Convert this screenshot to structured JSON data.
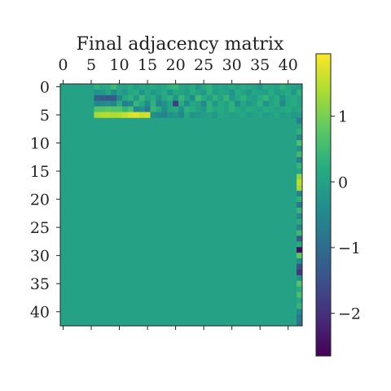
{
  "chart_data": {
    "type": "heatmap",
    "title": "Final adjacency matrix",
    "size": 43,
    "colormap": "viridis",
    "vmin": -2.65,
    "vmax": 1.95,
    "x_ticks": [
      0,
      5,
      10,
      15,
      20,
      25,
      30,
      35,
      40
    ],
    "y_ticks": [
      0,
      5,
      10,
      15,
      20,
      25,
      30,
      35,
      40
    ],
    "colorbar_ticks": [
      1,
      0,
      -1,
      -2
    ],
    "colorbar_tick_labels": [
      "1",
      "0",
      "−1",
      "−2"
    ],
    "dense_rows": {
      "start_row": 0,
      "start_col": 6,
      "rows": [
        [
          0.3,
          0.1,
          0.2,
          0.5,
          0.1,
          0.0,
          0.2,
          -0.1,
          0.1,
          0.0,
          0.2,
          0.0,
          0.1,
          0.3,
          0.4,
          0.1,
          0.0,
          0.2,
          -0.2,
          0.1,
          0.3,
          0.0,
          0.1,
          -0.1,
          0.2,
          0.0,
          0.2,
          0.1,
          0.0,
          -0.2,
          0.2,
          0.1,
          0.0,
          0.3,
          0.1,
          0.0,
          -0.1
        ],
        [
          -0.3,
          -0.2,
          0.1,
          -0.4,
          0.0,
          -0.2,
          0.1,
          0.2,
          -0.3,
          0.1,
          -0.2,
          0.0,
          0.2,
          -0.3,
          0.1,
          0.0,
          -0.1,
          0.2,
          0.0,
          -0.2,
          0.3,
          -0.1,
          0.1,
          0.0,
          -0.3,
          0.2,
          0.0,
          -0.2,
          0.1,
          0.0,
          -0.1,
          0.2,
          -0.1,
          0.0,
          0.2,
          -0.2,
          0.3
        ],
        [
          -1.2,
          -1.3,
          -1.4,
          -1.3,
          -0.5,
          0.1,
          0.3,
          -0.2,
          0.4,
          0.0,
          0.2,
          -0.3,
          0.1,
          0.3,
          -0.2,
          0.4,
          0.0,
          -0.4,
          0.5,
          0.2,
          -0.1,
          0.3,
          0.0,
          0.4,
          -0.2,
          0.1,
          0.3,
          0.0,
          -0.1,
          0.2,
          0.4,
          0.0,
          0.2,
          -0.3,
          0.1,
          0.2,
          0.0
        ],
        [
          -0.6,
          -0.5,
          -0.4,
          -0.6,
          0.2,
          -0.7,
          -0.5,
          0.4,
          0.1,
          -0.4,
          0.3,
          -0.6,
          -0.3,
          0.0,
          -1.8,
          0.2,
          -0.4,
          0.1,
          0.0,
          -0.5,
          0.3,
          -0.2,
          0.2,
          0.0,
          0.3,
          -0.4,
          0.1,
          -0.2,
          0.0,
          0.3,
          -0.3,
          0.0,
          0.2,
          -0.5,
          0.1,
          0.2,
          0.0
        ],
        [
          0.7,
          0.7,
          0.8,
          0.7,
          0.7,
          0.4,
          0.6,
          -0.5,
          -0.3,
          -0.8,
          0.4,
          0.2,
          -0.4,
          0.1,
          0.2,
          -0.3,
          0.3,
          0.2,
          0.0,
          -0.2,
          0.3,
          0.1,
          0.2,
          0.0,
          0.3,
          0.1,
          0.0,
          0.2,
          0.1,
          0.0,
          0.2,
          0.1,
          0.0,
          0.1,
          0.2,
          0.0,
          0.1
        ],
        [
          1.35,
          1.4,
          1.45,
          1.4,
          1.45,
          1.55,
          1.7,
          1.75,
          1.6,
          1.65,
          -0.4,
          -0.5,
          -0.6,
          -0.3,
          -0.2,
          -0.5,
          0.1,
          -0.3,
          -0.2,
          -0.1,
          0.0,
          -0.2,
          0.1,
          0.0,
          -0.1,
          0.0,
          0.1,
          -0.1,
          0.0,
          0.1,
          -0.1,
          0.0,
          0.1,
          -0.1,
          0.0,
          -0.2,
          -0.1
        ]
      ]
    },
    "last_column": {
      "col": 42,
      "start_row": 6,
      "values": [
        -0.7,
        0.0,
        0.3,
        -0.5,
        0.6,
        -0.3,
        0.5,
        -0.6,
        0.4,
        0.0,
        1.2,
        1.5,
        1.3,
        -0.6,
        0.3,
        -0.8,
        0.4,
        -0.5,
        0.2,
        -0.6,
        0.5,
        -1.3,
        0.2,
        -2.5,
        0.8,
        -0.4,
        -1.5,
        -1.9,
        -0.3,
        0.7,
        0.2,
        0.6,
        0.1,
        0.4,
        -0.5,
        -0.8,
        -0.9
      ]
    }
  }
}
